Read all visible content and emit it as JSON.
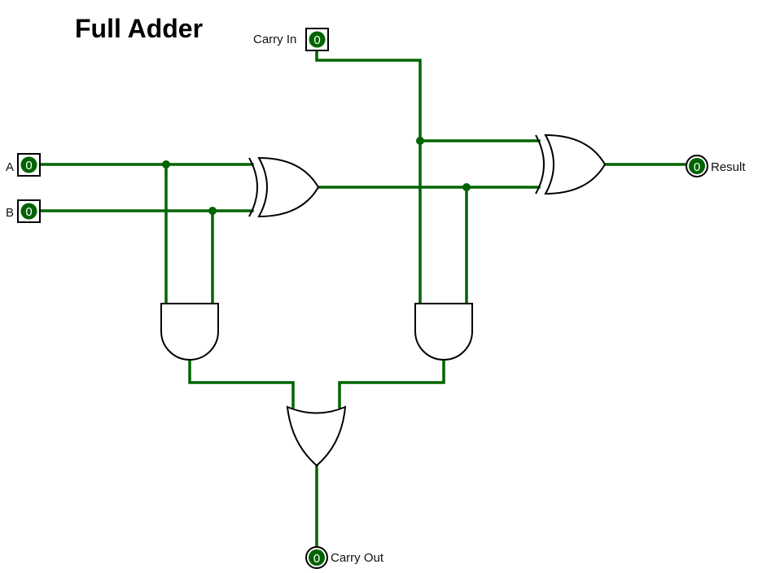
{
  "title": "Full Adder",
  "pins": {
    "a": {
      "label": "A",
      "value": "0"
    },
    "b": {
      "label": "B",
      "value": "0"
    },
    "carry_in": {
      "label": "Carry In",
      "value": "0"
    },
    "result": {
      "label": "Result",
      "value": "0"
    },
    "carry_out": {
      "label": "Carry Out",
      "value": "0"
    }
  },
  "gates": [
    {
      "id": "xor-1",
      "type": "XOR"
    },
    {
      "id": "xor-2",
      "type": "XOR"
    },
    {
      "id": "and-1",
      "type": "AND"
    },
    {
      "id": "and-2",
      "type": "AND"
    },
    {
      "id": "or-1",
      "type": "OR"
    }
  ],
  "colors": {
    "wire": "#006400",
    "pin_fill": "#006400",
    "pin_text": "#ffffff"
  }
}
